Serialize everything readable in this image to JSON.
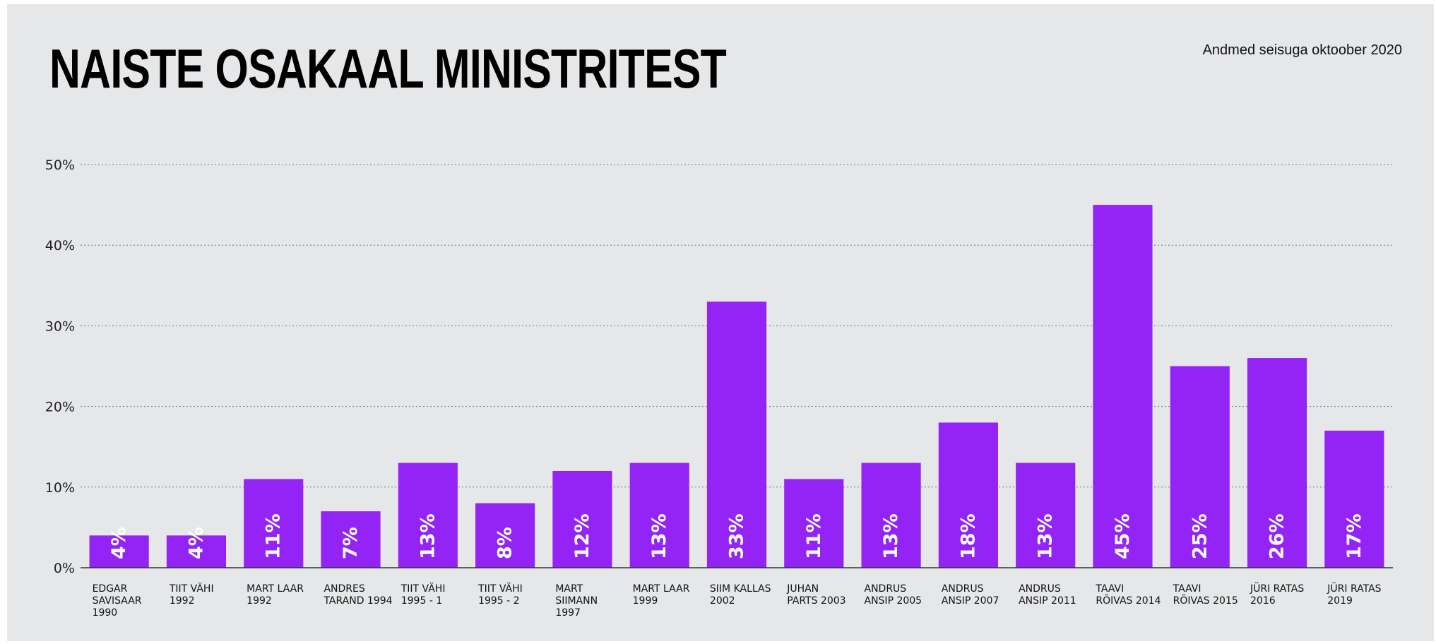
{
  "header": {
    "title": "NAISTE OSAKAAL MINISTRITEST",
    "note": "Andmed seisuga oktoober 2020"
  },
  "colors": {
    "bar": "#9423f5",
    "background": "#e6e7e9"
  },
  "chart_data": {
    "type": "bar",
    "title": "NAISTE OSAKAAL MINISTRITEST",
    "xlabel": "",
    "ylabel": "",
    "ylim": [
      0,
      50
    ],
    "yticks": [
      0,
      10,
      20,
      30,
      40,
      50
    ],
    "ytick_labels": [
      "0%",
      "10%",
      "20%",
      "30%",
      "40%",
      "50%"
    ],
    "grid": true,
    "categories": [
      [
        "EDGAR",
        "SAVISAAR",
        "1990"
      ],
      [
        "TIIT VÄHI",
        "1992"
      ],
      [
        "MART LAAR",
        "1992"
      ],
      [
        "ANDRES",
        "TARAND 1994"
      ],
      [
        "TIIT VÄHI",
        "1995 - 1"
      ],
      [
        "TIIT VÄHI",
        "1995 - 2"
      ],
      [
        "MART",
        "SIIMANN",
        "1997"
      ],
      [
        "MART LAAR",
        "1999"
      ],
      [
        "SIIM KALLAS",
        "2002"
      ],
      [
        "JUHAN",
        "PARTS 2003"
      ],
      [
        "ANDRUS",
        "ANSIP 2005"
      ],
      [
        "ANDRUS",
        "ANSIP 2007"
      ],
      [
        "ANDRUS",
        "ANSIP 2011"
      ],
      [
        "TAAVI",
        "RÕIVAS 2014"
      ],
      [
        "TAAVI",
        "RÕIVAS 2015"
      ],
      [
        "JÜRI RATAS",
        "2016"
      ],
      [
        "JÜRI RATAS",
        "2019"
      ]
    ],
    "values": [
      4,
      4,
      11,
      7,
      13,
      8,
      12,
      13,
      33,
      11,
      13,
      18,
      13,
      45,
      25,
      26,
      17
    ],
    "value_labels": [
      "4%",
      "4%",
      "11%",
      "7%",
      "13%",
      "8%",
      "12%",
      "13%",
      "33%",
      "11%",
      "13%",
      "18%",
      "13%",
      "45%",
      "25%",
      "26%",
      "17%"
    ]
  }
}
